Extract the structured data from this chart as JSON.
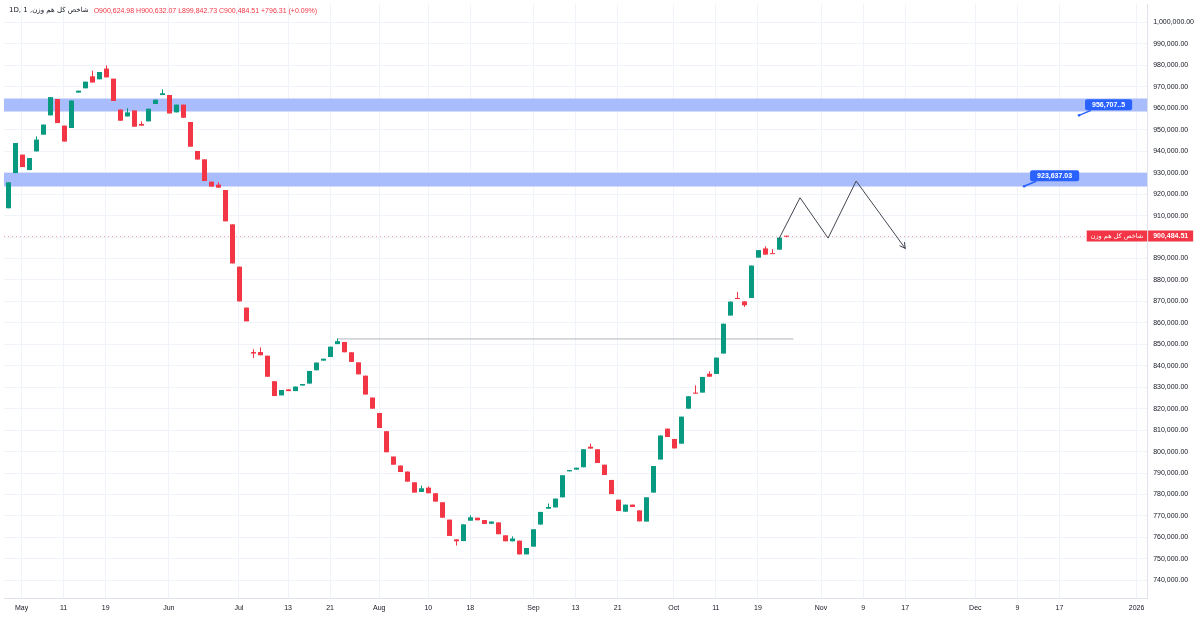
{
  "chart_data": {
    "type": "candlestick",
    "title": "شاخص کل هم وزن, 1D, 1",
    "subtitle": "O900,624.98 H900,632.07 L899,842.73 C900,484.51 +796.31 (+0.09%)",
    "categories": [
      null,
      null,
      "May",
      null,
      null,
      null,
      null,
      null,
      "11",
      null,
      null,
      null,
      null,
      null,
      "19",
      null,
      null,
      null,
      null,
      null,
      null,
      null,
      null,
      "Jun",
      null,
      null,
      null,
      null,
      null,
      null,
      null,
      null,
      null,
      "Jul",
      null,
      null,
      null,
      null,
      null,
      null,
      "13",
      null,
      null,
      null,
      null,
      null,
      "21",
      null,
      null,
      null,
      null,
      null,
      null,
      "Aug",
      null,
      null,
      null,
      null,
      null,
      null,
      "10",
      null,
      null,
      null,
      null,
      null,
      "18",
      null,
      null,
      null,
      null,
      null,
      null,
      null,
      null,
      "Sep",
      null,
      null,
      null,
      null,
      null,
      "13",
      null,
      null,
      null,
      null,
      null,
      "21",
      null,
      null,
      null,
      null,
      null,
      null,
      null,
      "Oct",
      null,
      null,
      null,
      null,
      null,
      "11",
      null,
      null,
      null,
      null,
      null,
      "19",
      null,
      null,
      null,
      null,
      null,
      null,
      null,
      null,
      "Nov",
      null,
      null,
      null,
      null,
      null,
      "9",
      null,
      null,
      null,
      null,
      null,
      "17",
      null,
      null,
      null,
      null,
      null,
      null,
      null,
      null,
      null,
      "Dec",
      null,
      null,
      null,
      null,
      null,
      "9",
      null,
      null,
      null,
      null,
      null,
      "17",
      null,
      null,
      null,
      null,
      null,
      null,
      null,
      null,
      null,
      null,
      "2026",
      null
    ],
    "ohlc": [
      [
        913400,
        925500,
        913400,
        925500
      ],
      [
        929800,
        943800,
        929800,
        943800
      ],
      [
        938400,
        938400,
        932600,
        932600
      ],
      [
        931200,
        936800,
        931200,
        936800
      ],
      [
        939900,
        946900,
        939900,
        945400
      ],
      [
        947700,
        952400,
        947700,
        952400
      ],
      [
        956700,
        965200,
        956700,
        965200
      ],
      [
        964300,
        964300,
        953100,
        953100
      ],
      [
        951900,
        951900,
        944500,
        944500
      ],
      [
        950800,
        963600,
        950800,
        963600
      ],
      [
        967300,
        968200,
        967300,
        968200
      ],
      [
        969300,
        972400,
        969300,
        972400
      ],
      [
        974900,
        977500,
        972000,
        972000
      ],
      [
        973500,
        976900,
        973500,
        976900
      ],
      [
        978500,
        980000,
        974400,
        974400
      ],
      [
        973800,
        973800,
        963400,
        963400
      ],
      [
        959400,
        959400,
        954200,
        954200
      ],
      [
        956200,
        960100,
        956200,
        958100
      ],
      [
        959000,
        959000,
        951400,
        951400
      ],
      [
        952700,
        953900,
        951900,
        951900
      ],
      [
        953900,
        959800,
        953900,
        959800
      ],
      [
        962000,
        964000,
        962000,
        964000
      ],
      [
        966200,
        968800,
        966200,
        967000
      ],
      [
        966200,
        966200,
        957600,
        957600
      ],
      [
        958100,
        961700,
        958100,
        961700
      ],
      [
        961700,
        961700,
        955600,
        955600
      ],
      [
        953600,
        953600,
        942100,
        942100
      ],
      [
        940100,
        940100,
        936100,
        936100
      ],
      [
        936200,
        936200,
        926100,
        926100
      ],
      [
        925800,
        925800,
        923500,
        923500
      ],
      [
        924400,
        925500,
        923000,
        923000
      ],
      [
        921900,
        921900,
        907300,
        907300
      ],
      [
        905900,
        905900,
        887700,
        887700
      ],
      [
        886200,
        886200,
        870000,
        870000
      ],
      [
        867100,
        867100,
        860700,
        860700
      ],
      [
        846400,
        847700,
        843600,
        845700
      ],
      [
        846400,
        848600,
        844900,
        844900
      ],
      [
        844700,
        844700,
        834900,
        834900
      ],
      [
        832800,
        832800,
        825900,
        825900
      ],
      [
        826200,
        828700,
        826200,
        828700
      ],
      [
        829000,
        829000,
        828200,
        828200
      ],
      [
        828200,
        830300,
        828200,
        830300
      ],
      [
        830800,
        831500,
        830800,
        831500
      ],
      [
        831700,
        837600,
        831700,
        837600
      ],
      [
        837900,
        841500,
        837900,
        841500
      ],
      [
        842400,
        843300,
        842400,
        843300
      ],
      [
        844100,
        848900,
        844100,
        848900
      ],
      [
        850100,
        852700,
        850100,
        851500
      ],
      [
        851100,
        851100,
        846300,
        846300
      ],
      [
        846300,
        846300,
        841800,
        841800
      ],
      [
        841600,
        841600,
        836000,
        836000
      ],
      [
        835400,
        835400,
        826600,
        826600
      ],
      [
        825200,
        825200,
        820000,
        820000
      ],
      [
        818000,
        818000,
        811000,
        811000
      ],
      [
        809500,
        809500,
        799700,
        799700
      ],
      [
        797700,
        797700,
        793900,
        793900
      ],
      [
        793500,
        793500,
        790500,
        790500
      ],
      [
        790700,
        790700,
        786000,
        786000
      ],
      [
        785700,
        785700,
        780900,
        780900
      ],
      [
        781200,
        784200,
        781200,
        782900
      ],
      [
        783200,
        783800,
        780600,
        780600
      ],
      [
        780600,
        780600,
        776700,
        776700
      ],
      [
        776400,
        776400,
        769200,
        769200
      ],
      [
        768300,
        768300,
        760700,
        760700
      ],
      [
        759100,
        759100,
        756200,
        758200
      ],
      [
        758300,
        766100,
        758300,
        766100
      ],
      [
        767800,
        770300,
        767800,
        769400
      ],
      [
        769200,
        769200,
        768000,
        768000
      ],
      [
        768100,
        768100,
        766300,
        766300
      ],
      [
        766400,
        767400,
        766400,
        767400
      ],
      [
        767000,
        767000,
        761500,
        761500
      ],
      [
        761000,
        761000,
        758200,
        758200
      ],
      [
        758200,
        760500,
        758200,
        759500
      ],
      [
        758500,
        758500,
        752100,
        752100
      ],
      [
        752100,
        755100,
        752100,
        755100
      ],
      [
        755700,
        763800,
        755700,
        763800
      ],
      [
        766000,
        771900,
        766000,
        771900
      ],
      [
        773400,
        775800,
        773400,
        774200
      ],
      [
        774000,
        778100,
        774000,
        778100
      ],
      [
        778700,
        789000,
        778700,
        789000
      ],
      [
        790800,
        791400,
        790800,
        791400
      ],
      [
        791600,
        792500,
        791600,
        792500
      ],
      [
        792700,
        801100,
        792700,
        801100
      ],
      [
        802300,
        803700,
        801400,
        801400
      ],
      [
        801100,
        801100,
        794700,
        794700
      ],
      [
        793900,
        793900,
        789100,
        789100
      ],
      [
        786800,
        786800,
        780200,
        780200
      ],
      [
        777600,
        777600,
        772300,
        772300
      ],
      [
        772000,
        775300,
        772000,
        775300
      ],
      [
        775300,
        775300,
        774200,
        774200
      ],
      [
        772600,
        772600,
        767500,
        767500
      ],
      [
        767400,
        778700,
        767400,
        778700
      ],
      [
        780900,
        793300,
        780900,
        793300
      ],
      [
        796300,
        807500,
        796300,
        807500
      ],
      [
        810700,
        810700,
        806800,
        806800
      ],
      [
        805900,
        805900,
        801500,
        801500
      ],
      [
        803700,
        816300,
        803700,
        816300
      ],
      [
        820000,
        825800,
        820000,
        825800
      ],
      [
        827500,
        830900,
        827000,
        827000
      ],
      [
        827500,
        834800,
        827500,
        834800
      ],
      [
        836300,
        837400,
        834900,
        834900
      ],
      [
        836200,
        843800,
        836200,
        843800
      ],
      [
        845700,
        859600,
        845700,
        859600
      ],
      [
        863400,
        869900,
        863400,
        869900
      ],
      [
        871600,
        874400,
        871100,
        871100
      ],
      [
        870000,
        870000,
        867400,
        868200
      ],
      [
        871600,
        886700,
        871600,
        886700
      ],
      [
        890400,
        893900,
        890400,
        893900
      ],
      [
        894700,
        895700,
        891800,
        891800
      ],
      [
        892500,
        894400,
        892300,
        892300
      ],
      [
        894100,
        899700,
        894100,
        899700
      ],
      [
        900624.98,
        900632.07,
        899842.73,
        900484.51
      ],
      null,
      null,
      null,
      null,
      null,
      null,
      null,
      null,
      null,
      null,
      null,
      null,
      null,
      null,
      null,
      null,
      null,
      null,
      null,
      null,
      null,
      null,
      null,
      null,
      null,
      null,
      null,
      null,
      null,
      null,
      null,
      null,
      null,
      null,
      null,
      null,
      null,
      null,
      null,
      null,
      null,
      null,
      null,
      null,
      null,
      null,
      null,
      null,
      null,
      null,
      null
    ],
    "colors": [
      "#089981",
      "#089981",
      "#f23645",
      "#089981",
      "#089981",
      "#089981",
      "#089981",
      "#f23645",
      "#f23645",
      "#089981",
      "#089981",
      "#089981",
      "#f23645",
      "#089981",
      "#f23645",
      "#f23645",
      "#f23645",
      "#089981",
      "#f23645",
      "#f23645",
      "#089981",
      "#089981",
      "#089981",
      "#f23645",
      "#089981",
      "#f23645",
      "#f23645",
      "#f23645",
      "#f23645",
      "#f23645",
      "#f23645",
      "#f23645",
      "#f23645",
      "#f23645",
      "#f23645",
      "#f23645",
      "#f23645",
      "#f23645",
      "#f23645",
      "#089981",
      "#f23645",
      "#089981",
      "#089981",
      "#089981",
      "#089981",
      "#089981",
      "#089981",
      "#089981",
      "#f23645",
      "#f23645",
      "#f23645",
      "#f23645",
      "#f23645",
      "#f23645",
      "#f23645",
      "#f23645",
      "#f23645",
      "#f23645",
      "#f23645",
      "#089981",
      "#f23645",
      "#f23645",
      "#f23645",
      "#f23645",
      "#f23645",
      "#089981",
      "#089981",
      "#f23645",
      "#f23645",
      "#089981",
      "#f23645",
      "#f23645",
      "#089981",
      "#f23645",
      "#089981",
      "#089981",
      "#089981",
      "#089981",
      "#089981",
      "#089981",
      "#089981",
      "#089981",
      "#089981",
      "#f23645",
      "#f23645",
      "#f23645",
      "#f23645",
      "#f23645",
      "#089981",
      "#f23645",
      "#f23645",
      "#089981",
      "#089981",
      "#089981",
      "#f23645",
      "#f23645",
      "#089981",
      "#089981",
      "#f23645",
      "#089981",
      "#f23645",
      "#089981",
      "#089981",
      "#089981",
      "#f23645",
      "#f23645",
      "#089981",
      "#089981",
      "#f23645",
      "#f23645",
      "#089981",
      "#f23645",
      null,
      null,
      null,
      null,
      null,
      null,
      null,
      null,
      null,
      null,
      null,
      null,
      null,
      null,
      null,
      null,
      null,
      null,
      null,
      null,
      null,
      null,
      null,
      null,
      null,
      null,
      null,
      null,
      null,
      null,
      null,
      null,
      null,
      null,
      null,
      null,
      null,
      null,
      null,
      null,
      null,
      null,
      null,
      null,
      null,
      null,
      null,
      null,
      null,
      null,
      null
    ],
    "series": [
      {
        "type": "line",
        "color": "#b2b5be",
        "values": [
          null,
          null,
          null,
          null,
          null,
          null,
          null,
          null,
          null,
          null,
          null,
          null,
          null,
          null,
          null,
          null,
          null,
          null,
          null,
          null,
          null,
          null,
          null,
          null,
          null,
          null,
          null,
          null,
          null,
          null,
          null,
          null,
          null,
          null,
          null,
          null,
          null,
          null,
          null,
          null,
          null,
          null,
          null,
          null,
          null,
          null,
          null,
          852500,
          null,
          null,
          null,
          null,
          null,
          null,
          null,
          null,
          null,
          null,
          null,
          null,
          null,
          null,
          null,
          null,
          null,
          null,
          null,
          null,
          null,
          null,
          null,
          null,
          null,
          null,
          null,
          null,
          null,
          null,
          null,
          null,
          null,
          null,
          null,
          null,
          null,
          null,
          null,
          null,
          null,
          null,
          null,
          null,
          null,
          null,
          null,
          null,
          null,
          null,
          null,
          null,
          null,
          null,
          null,
          null,
          null,
          null,
          null,
          null,
          null,
          null,
          null,
          null,
          852500,
          null,
          null,
          null,
          null,
          null,
          null,
          null,
          null,
          null,
          null,
          null,
          null,
          null,
          null,
          null,
          null,
          null,
          null,
          null,
          null,
          null,
          null,
          null,
          null,
          null,
          null,
          null,
          null,
          null,
          null,
          null,
          null,
          null,
          null,
          null,
          null,
          null,
          null,
          null,
          null,
          null,
          null,
          null,
          null,
          null,
          null,
          null,
          null,
          null,
          null
        ]
      },
      {
        "type": "line",
        "color": "#434651",
        "values": [
          null,
          null,
          null,
          null,
          null,
          null,
          null,
          null,
          null,
          null,
          null,
          null,
          null,
          null,
          null,
          null,
          null,
          null,
          null,
          null,
          null,
          null,
          null,
          null,
          null,
          null,
          null,
          null,
          null,
          null,
          null,
          null,
          null,
          null,
          null,
          null,
          null,
          null,
          null,
          null,
          null,
          null,
          null,
          null,
          null,
          null,
          null,
          null,
          null,
          null,
          null,
          null,
          null,
          null,
          null,
          null,
          null,
          null,
          null,
          null,
          null,
          null,
          null,
          null,
          null,
          null,
          null,
          null,
          null,
          null,
          null,
          null,
          null,
          null,
          null,
          null,
          null,
          null,
          null,
          null,
          null,
          null,
          null,
          null,
          null,
          null,
          null,
          null,
          null,
          null,
          null,
          null,
          null,
          null,
          null,
          null,
          null,
          null,
          null,
          null,
          null,
          null,
          null,
          null,
          null,
          null,
          null,
          null,
          null,
          null,
          899100,
          null,
          null,
          918200,
          null,
          null,
          null,
          899400,
          null,
          null,
          null,
          926000,
          null,
          null,
          null,
          null,
          null,
          null,
          894600,
          null,
          null,
          null,
          null,
          null,
          null,
          null,
          null,
          null,
          null,
          null,
          null,
          null,
          null,
          null,
          null,
          null,
          null,
          null,
          null,
          null,
          null,
          null,
          null,
          null,
          null,
          null,
          null,
          null,
          null,
          null,
          null,
          null,
          null
        ]
      }
    ],
    "bands": [
      {
        "axis": "y",
        "from": 958500,
        "to": 964500,
        "color": "#a9bcfc"
      },
      {
        "axis": "y",
        "from": 923600,
        "to": 930000,
        "color": "#a9bcfc"
      }
    ],
    "ref_lines": [
      {
        "axis": "y",
        "value": 900484.51,
        "label": "شاخص کل هم وزن",
        "color": "#f23645",
        "line_style": "dotted"
      }
    ],
    "annotations": [
      {
        "text": "956,707..5",
        "y": 956707.5
      },
      {
        "text": "923,637.03",
        "y": 923637.03
      }
    ],
    "ylim": [
      731500,
      1008500
    ],
    "yticks": [
      {
        "value": 740000,
        "label": "740,000.00"
      },
      {
        "value": 750000,
        "label": "750,000.00"
      },
      {
        "value": 760000,
        "label": "760,000.00"
      },
      {
        "value": 770000,
        "label": "770,000.00"
      },
      {
        "value": 780000,
        "label": "780,000.00"
      },
      {
        "value": 790000,
        "label": "790,000.00"
      },
      {
        "value": 800000,
        "label": "800,000.00"
      },
      {
        "value": 810000,
        "label": "810,000.00"
      },
      {
        "value": 820000,
        "label": "820,000.00"
      },
      {
        "value": 830000,
        "label": "830,000.00"
      },
      {
        "value": 840000,
        "label": "840,000.00"
      },
      {
        "value": 850000,
        "label": "850,000.00"
      },
      {
        "value": 860000,
        "label": "860,000.00"
      },
      {
        "value": 870000,
        "label": "870,000.00"
      },
      {
        "value": 880000,
        "label": "880,000.00"
      },
      {
        "value": 890000,
        "label": "890,000.00"
      },
      {
        "value": 900000,
        "label": null
      },
      {
        "value": 900484.51,
        "label": "900,484.51"
      },
      {
        "value": 910000,
        "label": "910,000.00"
      },
      {
        "value": 920000,
        "label": "920,000.00"
      },
      {
        "value": 930000,
        "label": "930,000.00"
      },
      {
        "value": 940000,
        "label": "940,000.00"
      },
      {
        "value": 950000,
        "label": "950,000.00"
      },
      {
        "value": 960000,
        "label": "960,000.00"
      },
      {
        "value": 970000,
        "label": "970,000.00"
      },
      {
        "value": 980000,
        "label": "980,000.00"
      },
      {
        "value": 990000,
        "label": "990,000.00"
      },
      {
        "value": 1000000,
        "label": "1,000,000.00"
      }
    ],
    "grid": true
  }
}
